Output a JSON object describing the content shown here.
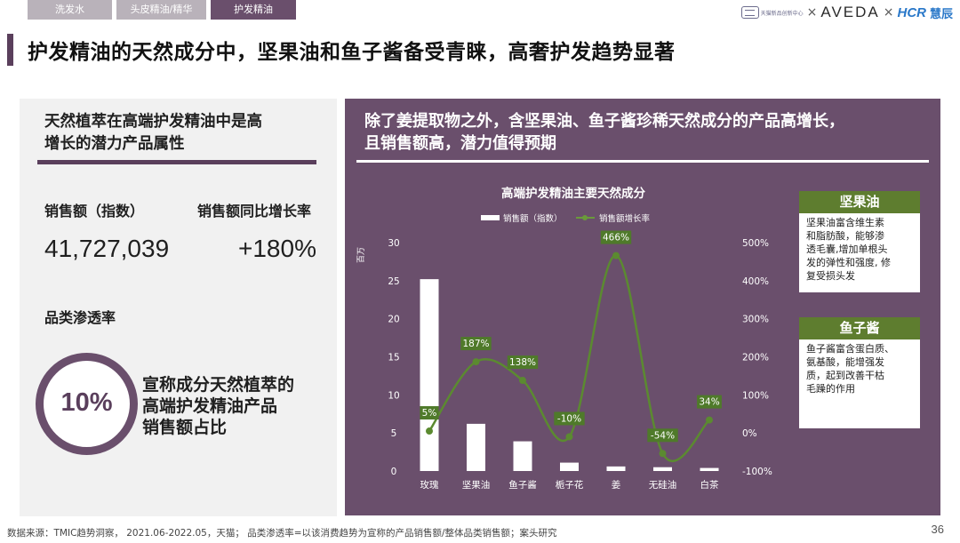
{
  "tabs": [
    {
      "label": "洗发水",
      "active": false
    },
    {
      "label": "头皮精油/精华",
      "active": false
    },
    {
      "label": "护发精油",
      "active": true
    }
  ],
  "logos": {
    "tmic_text": "天猫新品创新中心",
    "x": "×",
    "aveda": "AVEDA",
    "hcr": "HCR",
    "hcr_cn": "慧辰"
  },
  "page_title": "护发精油的天然成分中，坚果油和鱼子酱备受青睐，高奢护发趋势显著",
  "left": {
    "heading_line1": "天然植萃在高端护发精油中是高",
    "heading_line2": "增长的潜力产品属性",
    "sales_label": "销售额（指数）",
    "sales_value": "41,727,039",
    "growth_label": "销售额同比增长率",
    "growth_value": "+180%",
    "penetration_label": "品类渗透率",
    "penetration_value": "10%",
    "penetration_value_num": 0.1,
    "desc_line1": "宣称成分天然植萃的",
    "desc_line2": "高端护发精油产品",
    "desc_line3": "销售额占比"
  },
  "right": {
    "heading_line1": "除了姜提取物之外，含坚果油、鱼子酱珍稀天然成分的产品高增长，",
    "heading_line2": "且销售额高，潜力值得预期"
  },
  "side": [
    {
      "title": "坚果油",
      "lines": [
        "坚果油富含维生素",
        "和脂肪酸，能够渗",
        "透毛囊,增加单根头",
        "发的弹性和强度, 修",
        "复受损头发"
      ]
    },
    {
      "title": "鱼子酱",
      "lines": [
        "鱼子酱富含蛋白质、",
        "氨基酸，能增强发",
        "质，起到改善干枯",
        "毛躁的作用"
      ]
    }
  ],
  "colors": {
    "purple": "#6a4f6c",
    "green": "#5e7d2f",
    "line_green": "#4f7a2a"
  },
  "chart_data": {
    "type": "bar",
    "title": "高端护发精油主要天然成分",
    "categories": [
      "玫瑰",
      "坚果油",
      "鱼子酱",
      "栀子花",
      "姜",
      "无硅油",
      "白茶"
    ],
    "y_unit_label": "百万",
    "ylim": [
      0,
      30
    ],
    "y_ticks": [
      "30",
      "25",
      "20",
      "15",
      "10",
      "5",
      "0"
    ],
    "y2lim": [
      -100,
      500
    ],
    "y2_ticks": [
      "500%",
      "400%",
      "300%",
      "200%",
      "100%",
      "0%",
      "-100%"
    ],
    "series": [
      {
        "name": "销售额（指数）",
        "type": "bar",
        "values": [
          25.2,
          6.2,
          3.9,
          1.1,
          0.6,
          0.5,
          0.4
        ]
      },
      {
        "name": "销售额增长率",
        "type": "line",
        "axis": "right",
        "values": [
          5,
          187,
          138,
          -10,
          466,
          -54,
          34
        ],
        "labels": [
          "5%",
          "187%",
          "138%",
          "-10%",
          "466%",
          "-54%",
          "34%"
        ]
      }
    ],
    "legend_position": "top",
    "grid": false
  },
  "footnote": "数据来源：TMIC趋势洞察， 2021.06-2022.05，天猫； 品类渗透率=以该消费趋势为宣称的产品销售额/整体品类销售额；案头研究",
  "page_number": "36"
}
